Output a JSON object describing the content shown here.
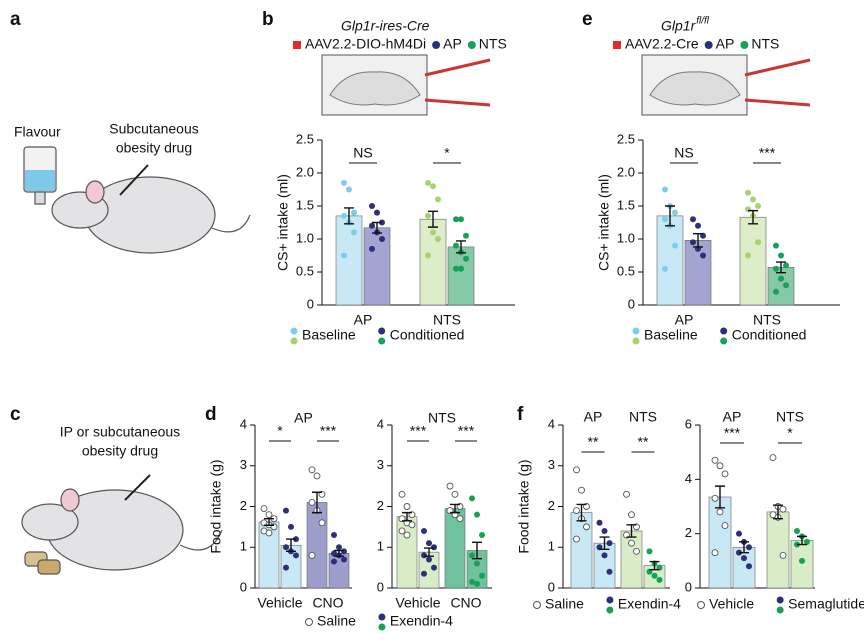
{
  "panels": {
    "a": {
      "label": "a",
      "texts": [
        "Flavour",
        "Subcutaneous",
        "obesity drug"
      ]
    },
    "b": {
      "label": "b"
    },
    "c": {
      "label": "c",
      "texts": [
        "IP or subcutaneous",
        "obesity drug"
      ]
    },
    "d": {
      "label": "d"
    },
    "e": {
      "label": "e"
    },
    "f": {
      "label": "f"
    }
  },
  "chart_data": [
    {
      "type": "bar",
      "inset_title": "Glp1r-ires-Cre",
      "construct": "AAV2.2-DIO-hM4Di",
      "regions": [
        "AP",
        "NTS"
      ],
      "region_colors": [
        "#2e2f7a",
        "#17a05a"
      ],
      "categories": [
        "AP",
        "NTS"
      ],
      "category_position": "bottom",
      "ylabel": "CS+ intake (ml)",
      "ylim": [
        0,
        2.5
      ],
      "yticks": [
        0,
        0.5,
        {
          "value": 1,
          "label": "1.0"
        },
        1.5,
        {
          "value": 2,
          "label": "2.0"
        },
        2.5
      ],
      "significance": [
        "NS",
        "*"
      ],
      "legend": true,
      "series": [
        {
          "name": "Baseline",
          "colors": [
            "#c8e8f6",
            "#dcedc8"
          ],
          "point_colors": [
            "#7fcdee",
            "#a6d26f"
          ],
          "values": [
            1.35,
            1.3
          ],
          "errors": [
            0.12,
            0.12
          ],
          "points": [
            [
              1.85,
              1.75,
              1.4,
              1.35,
              1.25,
              1.1,
              0.75
            ],
            [
              1.85,
              1.8,
              1.6,
              1.35,
              1.1,
              1.0,
              0.75
            ]
          ]
        },
        {
          "name": "Conditioned",
          "colors": [
            "#a3a4cf",
            "#86c9a6"
          ],
          "point_colors": [
            "#2e2f7a",
            "#17a05a"
          ],
          "values": [
            1.17,
            0.88
          ],
          "errors": [
            0.08,
            0.09
          ],
          "points": [
            [
              1.5,
              1.4,
              1.25,
              1.2,
              1.1,
              1.0,
              0.85
            ],
            [
              1.3,
              1.3,
              1.05,
              0.9,
              0.8,
              0.7,
              0.55,
              0.55
            ]
          ]
        }
      ]
    },
    {
      "type": "bar",
      "inset_title": "Glp1r",
      "inset_title_sup": "fl/fl",
      "construct": "AAV2.2-Cre",
      "regions": [
        "AP",
        "NTS"
      ],
      "region_colors": [
        "#2e2f7a",
        "#17a05a"
      ],
      "categories": [
        "AP",
        "NTS"
      ],
      "category_position": "bottom",
      "ylabel": "CS+ intake (ml)",
      "ylim": [
        0,
        2.5
      ],
      "yticks": [
        0,
        0.5,
        {
          "value": 1,
          "label": "1.0"
        },
        1.5,
        {
          "value": 2,
          "label": "2.0"
        },
        2.5
      ],
      "significance": [
        "NS",
        "***"
      ],
      "legend": true,
      "series": [
        {
          "name": "Baseline",
          "colors": [
            "#c8e8f6",
            "#dcedc8"
          ],
          "point_colors": [
            "#7fcdee",
            "#a6d26f"
          ],
          "values": [
            1.35,
            1.33
          ],
          "errors": [
            0.15,
            0.1
          ],
          "points": [
            [
              1.75,
              1.5,
              1.4,
              1.3,
              1.2,
              0.9,
              0.55
            ],
            [
              1.7,
              1.6,
              1.5,
              1.45,
              1.35,
              0.95,
              0.75
            ]
          ]
        },
        {
          "name": "Conditioned",
          "colors": [
            "#a3a4cf",
            "#86c9a6"
          ],
          "point_colors": [
            "#2e2f7a",
            "#17a05a"
          ],
          "values": [
            0.98,
            0.57
          ],
          "errors": [
            0.1,
            0.08
          ],
          "points": [
            [
              1.3,
              1.2,
              1.05,
              0.95,
              0.85,
              0.75
            ],
            [
              0.9,
              0.75,
              0.6,
              0.55,
              0.4,
              0.3,
              0.2
            ]
          ]
        }
      ]
    },
    {
      "type": "bar",
      "title": "AP",
      "categories": [
        "Vehicle",
        "CNO"
      ],
      "category_position": "bottom",
      "ylabel": "Food intake (g)",
      "ylim": [
        0,
        4
      ],
      "yticks": [
        0,
        1,
        2,
        3,
        4
      ],
      "significance": [
        "*",
        "***"
      ],
      "legend": false,
      "series": [
        {
          "colors": [
            "#c8e8f6",
            "#9d9ecb"
          ],
          "point_colors": [
            "#ffffff",
            "#ffffff"
          ],
          "values": [
            1.62,
            2.1
          ],
          "errors": [
            0.08,
            0.25
          ],
          "points": [
            [
              1.95,
              1.8,
              1.7,
              1.6,
              1.55,
              1.5,
              1.4,
              1.35
            ],
            [
              2.9,
              2.75,
              2.3,
              2.1,
              1.9,
              1.6,
              0.8
            ]
          ]
        },
        {
          "colors": [
            "#c8e8f6",
            "#9d9ecb"
          ],
          "point_colors": [
            "#2e2f7a",
            "#2e2f7a"
          ],
          "values": [
            1.05,
            0.85
          ],
          "errors": [
            0.15,
            0.07
          ],
          "points": [
            [
              1.9,
              1.5,
              1.2,
              1.0,
              0.9,
              0.8,
              0.5
            ],
            [
              1.3,
              1.0,
              0.9,
              0.85,
              0.8,
              0.7,
              0.65
            ]
          ]
        }
      ]
    },
    {
      "type": "bar",
      "title": "NTS",
      "categories": [
        "Vehicle",
        "CNO"
      ],
      "category_position": "bottom",
      "ylim": [
        0,
        4
      ],
      "yticks": [
        0,
        1,
        2,
        3,
        4
      ],
      "significance": [
        "***",
        "***"
      ],
      "legend": true,
      "series": [
        {
          "name": "Saline",
          "colors": [
            "#d8ecc8",
            "#6fc29d"
          ],
          "point_colors": [
            "#ffffff",
            "#ffffff"
          ],
          "values": [
            1.75,
            1.95
          ],
          "errors": [
            0.1,
            0.1
          ],
          "points": [
            [
              2.3,
              2.0,
              1.8,
              1.7,
              1.6,
              1.55,
              1.4,
              1.3
            ],
            [
              2.5,
              2.3,
              2.0,
              1.9,
              1.8,
              1.7
            ]
          ]
        },
        {
          "name": "Exendin-4",
          "colors": [
            "#d8ecc8",
            "#6fc29d"
          ],
          "point_colors": [
            "#2e2f7a",
            "#17a05a"
          ],
          "values": [
            0.88,
            0.92
          ],
          "errors": [
            0.1,
            0.2
          ],
          "points": [
            [
              1.4,
              1.1,
              1.0,
              0.8,
              0.7,
              0.5,
              0.35
            ],
            [
              2.2,
              1.8,
              1.3,
              0.8,
              0.6,
              0.3,
              0.15,
              0.1
            ]
          ]
        }
      ]
    },
    {
      "type": "bar",
      "categories": [
        "AP",
        "NTS"
      ],
      "category_position": "top",
      "ylabel": "Food intake (g)",
      "ylim": [
        0,
        4
      ],
      "yticks": [
        0,
        1,
        2,
        3,
        4
      ],
      "significance": [
        "**",
        "**"
      ],
      "legend": true,
      "series": [
        {
          "name": "Saline",
          "colors": [
            "#c8e8f6",
            "#d8ecc8"
          ],
          "point_colors": [
            "#ffffff",
            "#ffffff"
          ],
          "values": [
            1.85,
            1.4
          ],
          "errors": [
            0.2,
            0.15
          ],
          "points": [
            [
              2.9,
              2.4,
              2.0,
              1.9,
              1.7,
              1.5,
              1.2
            ],
            [
              2.3,
              1.8,
              1.5,
              1.3,
              1.1,
              0.9
            ]
          ]
        },
        {
          "name": "Exendin-4",
          "colors": [
            "#c8e8f6",
            "#d8ecc8"
          ],
          "point_colors": [
            "#2e2f7a",
            "#17a05a"
          ],
          "values": [
            1.1,
            0.55
          ],
          "errors": [
            0.15,
            0.1
          ],
          "points": [
            [
              1.6,
              1.4,
              1.1,
              1.0,
              0.8,
              0.4
            ],
            [
              0.9,
              0.6,
              0.5,
              0.4,
              0.3,
              0.2
            ]
          ]
        }
      ]
    },
    {
      "type": "bar",
      "categories": [
        "AP",
        "NTS"
      ],
      "category_position": "top",
      "ylim": [
        0,
        6
      ],
      "yticks": [
        0,
        2,
        4,
        6
      ],
      "significance": [
        "***",
        "*"
      ],
      "legend": true,
      "series": [
        {
          "name": "Vehicle",
          "colors": [
            "#c8e8f6",
            "#d8ecc8"
          ],
          "point_colors": [
            "#ffffff",
            "#ffffff"
          ],
          "values": [
            3.35,
            2.8
          ],
          "errors": [
            0.4,
            0.25
          ],
          "points": [
            [
              4.7,
              4.5,
              4.2,
              3.3,
              2.8,
              2.3,
              1.3
            ],
            [
              4.8,
              3.0,
              2.9,
              2.7,
              2.6,
              1.2
            ]
          ]
        },
        {
          "name": "Semaglutide",
          "colors": [
            "#c8e8f6",
            "#d8ecc8"
          ],
          "point_colors": [
            "#2e2f7a",
            "#17a05a"
          ],
          "values": [
            1.5,
            1.75
          ],
          "errors": [
            0.2,
            0.15
          ],
          "points": [
            [
              2.0,
              1.7,
              1.5,
              1.3,
              1.1,
              0.8
            ],
            [
              2.1,
              1.9,
              1.7,
              1.6,
              1.0
            ]
          ]
        }
      ]
    }
  ]
}
